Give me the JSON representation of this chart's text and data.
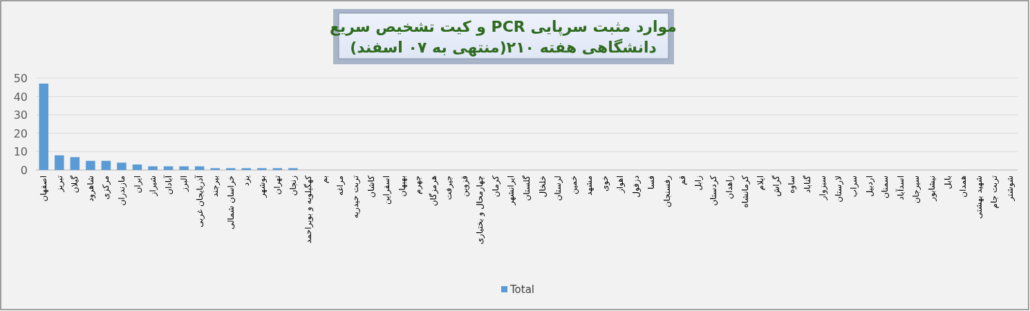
{
  "chart_data": {
    "type": "bar",
    "title": "موارد مثبت سرپایی PCR و کیت تشخیص سریع\nدانشگاهی هفته ۲۱۰(منتهی به ۰۷ اسفند)",
    "categories": [
      "اصفهان",
      "تبریز",
      "گیلان",
      "شاهرود",
      "مرکزی",
      "مازندران",
      "ایران",
      "شیراز",
      "آبادان",
      "البرز",
      "آذربایجان غربی",
      "بیرجند",
      "خراسان شمالی",
      "یزد",
      "بوشهر",
      "تهران",
      "زنجان",
      "کهگیلویه و بویراحمد",
      "بم",
      "مراغه",
      "تربت حیدریه",
      "کاشان",
      "اسفراین",
      "بهبهان",
      "جهرم",
      "هرمزگان",
      "جیرفت",
      "قزوین",
      "چهارمحال و بختیاری",
      "کرمان",
      "ایرانشهر",
      "گلستان",
      "خلخال",
      "لرستان",
      "خمین",
      "مشهد",
      "خوی",
      "اهواز",
      "دزفول",
      "فسا",
      "رفسنجان",
      "قم",
      "زابل",
      "کردستان",
      "زاهدان",
      "کرمانشاه",
      "ایلام",
      "گراش",
      "ساوه",
      "گناباد",
      "سبزوار",
      "لارستان",
      "سراب",
      "اردبیل",
      "سمنان",
      "اسدآباد",
      "سیرجان",
      "نیشابور",
      "بابل",
      "همدان",
      "شهید بهشتی",
      "تربت جام",
      "شوشتر"
    ],
    "series": [
      {
        "name": "Total",
        "color": "#5b9bd5",
        "values": [
          47,
          8,
          7,
          5,
          5,
          4,
          3,
          2,
          2,
          2,
          2,
          1,
          1,
          1,
          1,
          1,
          1,
          0,
          0,
          0,
          0,
          0,
          0,
          0,
          0,
          0,
          0,
          0,
          0,
          0,
          0,
          0,
          0,
          0,
          0,
          0,
          0,
          0,
          0,
          0,
          0,
          0,
          0,
          0,
          0,
          0,
          0,
          0,
          0,
          0,
          0,
          0,
          0,
          0,
          0,
          0,
          0,
          0,
          0,
          0,
          0,
          0,
          0
        ]
      }
    ],
    "ylim": [
      0,
      50
    ],
    "yticks": [
      0,
      10,
      20,
      30,
      40,
      50
    ],
    "grid": "y",
    "legend": "bottom"
  }
}
